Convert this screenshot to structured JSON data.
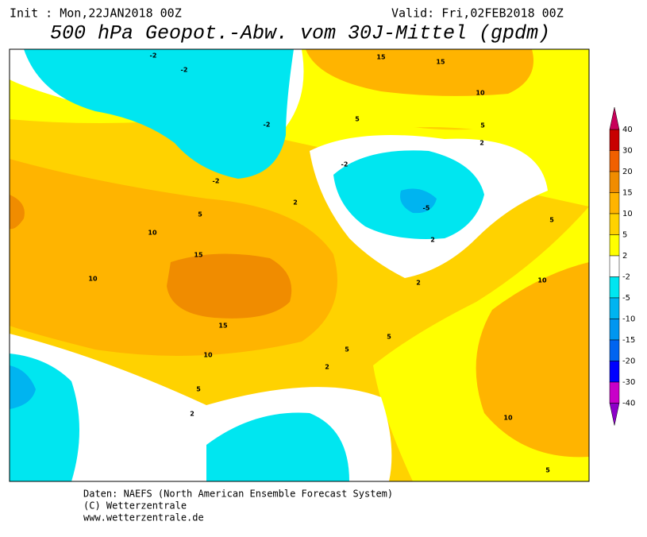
{
  "header": {
    "init": "Init : Mon,22JAN2018 00Z",
    "valid": "Valid: Fri,02FEB2018 00Z",
    "title": "500 hPa Geopot.-Abw. vom 30J-Mittel (gpdm)"
  },
  "legend": {
    "levels": [
      40,
      30,
      20,
      15,
      10,
      5,
      2,
      -2,
      -5,
      -10,
      -15,
      -20,
      -30,
      -40
    ],
    "colors": [
      "#c80000",
      "#f06000",
      "#f08c00",
      "#ffb400",
      "#ffd200",
      "#ffff00",
      "#ffffff",
      "#00e6f0",
      "#00b4f0",
      "#0096f0",
      "#0064f0",
      "#0000ff",
      "#c800c8"
    ],
    "top_color": "#c8005a",
    "bottom_color": "#8c00c8"
  },
  "contour_labels": [
    "15",
    "15",
    "10",
    "5",
    "5",
    "2",
    "-2",
    "-2",
    "-2",
    "-2",
    "-2",
    "-5",
    "2",
    "5",
    "10",
    "15",
    "10",
    "15",
    "10",
    "5",
    "2",
    "2",
    "2",
    "5",
    "5",
    "5",
    "2",
    "10",
    "10",
    "5"
  ],
  "footer": [
    "Daten: NAEFS (North American Ensemble Forecast System)",
    "(C) Wetterzentrale",
    "www.wetterzentrale.de"
  ]
}
